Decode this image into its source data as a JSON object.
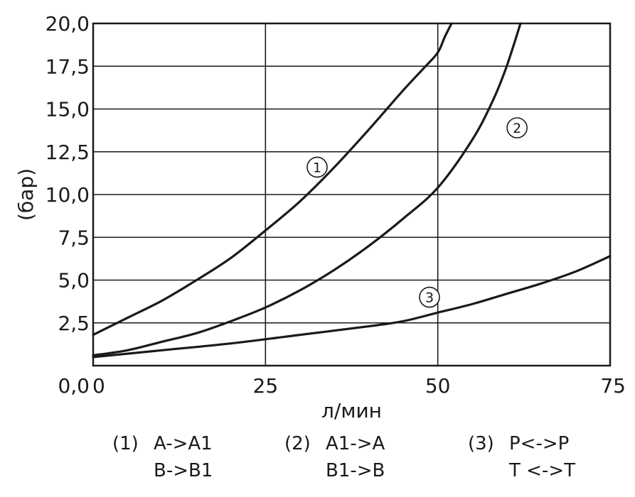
{
  "chart_data": {
    "type": "line",
    "xlabel": "л/мин",
    "ylabel": "(бар)",
    "xlim": [
      0,
      75
    ],
    "ylim": [
      0,
      20
    ],
    "x_tick_labels": [
      "0,0",
      "25",
      "50",
      "75"
    ],
    "y_tick_labels": [
      "0,0",
      "2,5",
      "5,0",
      "7,5",
      "10,0",
      "12,5",
      "15,0",
      "17,5",
      "20,0"
    ],
    "grid": true,
    "series": [
      {
        "name": "1",
        "color": "#1a1a1a",
        "x": [
          0,
          5,
          10,
          15,
          20,
          25,
          30,
          35,
          40,
          45,
          48,
          50,
          51,
          52
        ],
        "y": [
          1.8,
          2.8,
          3.8,
          5.0,
          6.3,
          7.9,
          9.6,
          11.6,
          13.8,
          16.1,
          17.4,
          18.3,
          19.2,
          20.0
        ]
      },
      {
        "name": "2",
        "color": "#1a1a1a",
        "x": [
          0,
          5,
          10,
          15,
          20,
          25,
          30,
          35,
          40,
          45,
          50,
          55,
          58,
          60,
          62
        ],
        "y": [
          0.6,
          0.9,
          1.4,
          1.9,
          2.6,
          3.4,
          4.4,
          5.6,
          7.0,
          8.6,
          10.4,
          13.2,
          15.5,
          17.5,
          20.0
        ]
      },
      {
        "name": "3",
        "color": "#1a1a1a",
        "x": [
          0,
          10,
          20,
          30,
          40,
          45,
          50,
          55,
          60,
          65,
          70,
          75
        ],
        "y": [
          0.5,
          0.9,
          1.3,
          1.8,
          2.3,
          2.6,
          3.1,
          3.6,
          4.2,
          4.8,
          5.5,
          6.4
        ]
      }
    ],
    "annotations": [
      {
        "label": "1",
        "x": 32.5,
        "y": 11.6
      },
      {
        "label": "2",
        "x": 61.5,
        "y": 13.9
      },
      {
        "label": "3",
        "x": 48.8,
        "y": 4.0
      }
    ]
  },
  "legend": [
    {
      "key": "(1)",
      "line1": "A->A1",
      "line2": "B->B1"
    },
    {
      "key": "(2)",
      "line1": "A1->A",
      "line2": "B1->B"
    },
    {
      "key": "(3)",
      "line1": "P<->P",
      "line2": "T <->T"
    }
  ]
}
